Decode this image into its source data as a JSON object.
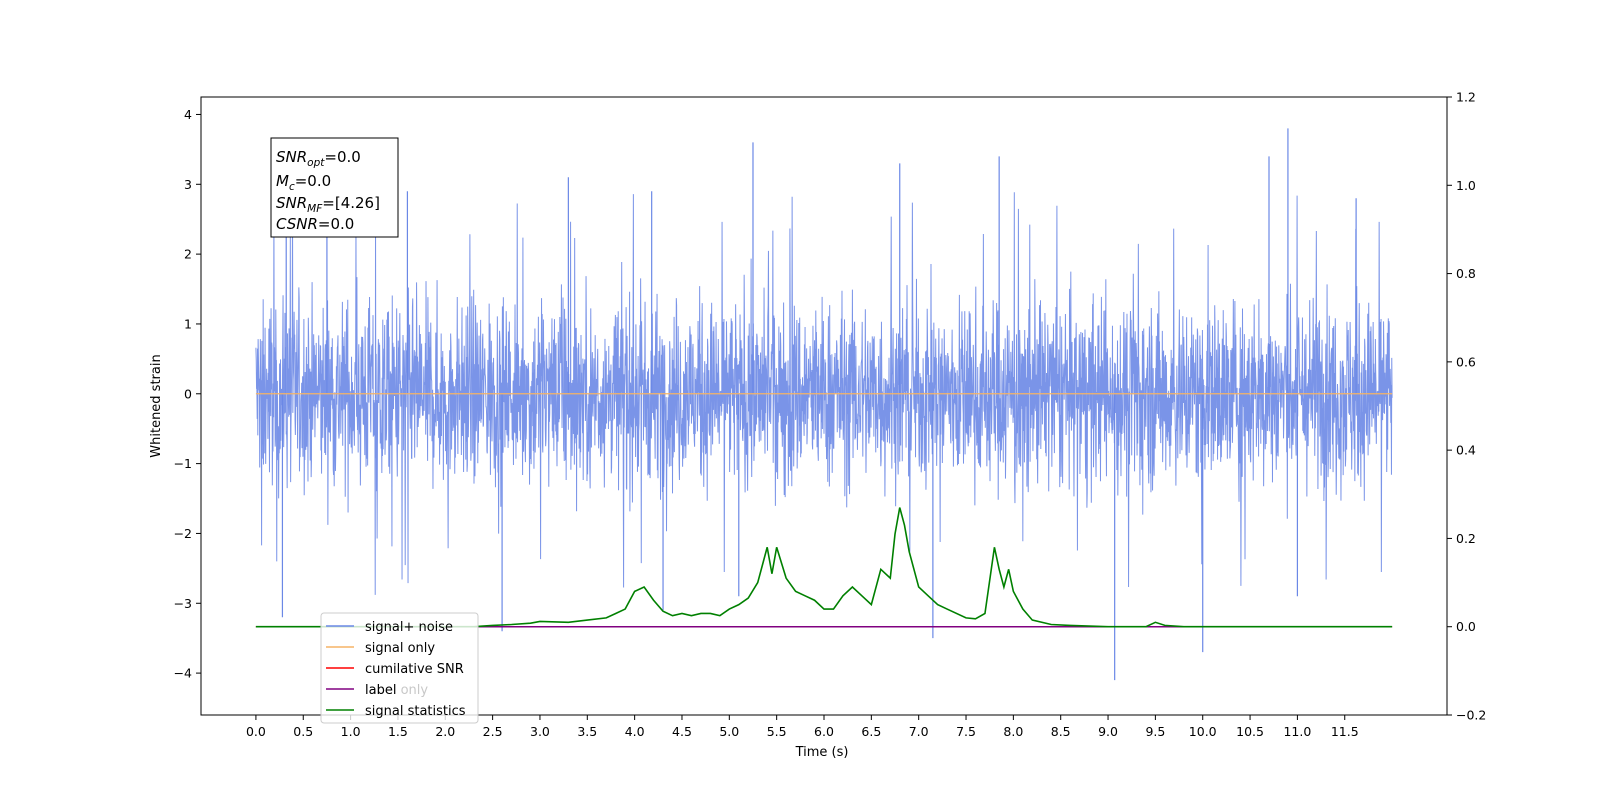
{
  "chart_data": {
    "type": "line",
    "xlabel": "Time (s)",
    "ylabel": "Whitened strain",
    "xlim": [
      -0.58,
      12.58
    ],
    "ylim": [
      -4.6,
      4.25
    ],
    "y2lim": [
      -0.2,
      1.2
    ],
    "x_ticks": [
      "0.0",
      "0.5",
      "1.0",
      "1.5",
      "2.0",
      "2.5",
      "3.0",
      "3.5",
      "4.0",
      "4.5",
      "5.0",
      "5.5",
      "6.0",
      "6.5",
      "7.0",
      "7.5",
      "8.0",
      "8.5",
      "9.0",
      "9.5",
      "10.0",
      "10.5",
      "11.0",
      "11.5"
    ],
    "y_ticks": [
      "-4",
      "-3",
      "-2",
      "-1",
      "0",
      "1",
      "2",
      "3",
      "4"
    ],
    "y2_ticks": [
      "-0.2",
      "0.0",
      "0.2",
      "0.4",
      "0.6",
      "0.8",
      "1.0",
      "1.2"
    ],
    "annotation": {
      "snr_opt_label": "SNR",
      "snr_opt_sub": "opt",
      "snr_opt_value": "=0.0",
      "mc_label": "M",
      "mc_sub": "c",
      "mc_value": "=0.0",
      "snr_mf_label": "SNR",
      "snr_mf_sub": "MF",
      "snr_mf_value": "=[4.26]",
      "csnr_label": "CSNR",
      "csnr_value": "=0.0"
    },
    "series": [
      {
        "name": "signal+ noise",
        "color": "#6b88e6",
        "x_range": [
          0.0,
          12.0
        ],
        "envelope_upper": 2.2,
        "envelope_lower": -2.0,
        "spikes_up": [
          [
            0.32,
            2.9
          ],
          [
            0.75,
            2.8
          ],
          [
            1.6,
            2.9
          ],
          [
            3.3,
            3.1
          ],
          [
            4.18,
            2.9
          ],
          [
            5.25,
            3.6
          ],
          [
            6.8,
            3.3
          ],
          [
            7.85,
            3.4
          ],
          [
            10.7,
            3.4
          ],
          [
            10.9,
            3.8
          ],
          [
            11.62,
            2.8
          ]
        ],
        "spikes_down": [
          [
            0.28,
            -3.2
          ],
          [
            2.6,
            -3.4
          ],
          [
            4.3,
            -3.1
          ],
          [
            5.1,
            -2.9
          ],
          [
            7.15,
            -3.5
          ],
          [
            9.07,
            -4.1
          ],
          [
            10.0,
            -3.7
          ],
          [
            11.0,
            -2.9
          ]
        ]
      },
      {
        "name": "signal only",
        "color": "#f5b366",
        "x": [
          0.0,
          12.0
        ],
        "y": [
          0.0,
          0.0
        ]
      },
      {
        "name": "cumilative SNR",
        "color": "#ff0000",
        "x": [
          0.0,
          12.0
        ],
        "y": [
          0.0,
          0.0
        ]
      },
      {
        "name": "label",
        "color": "#800080",
        "x": [
          0.0,
          12.0
        ],
        "y": [
          0.0,
          0.0
        ]
      },
      {
        "name": "label only",
        "color": "#bfbfbf"
      },
      {
        "name": "signal statistics",
        "color": "#008000",
        "axis": "right",
        "x": [
          0.0,
          2.3,
          2.5,
          2.7,
          2.9,
          3.0,
          3.3,
          3.5,
          3.7,
          3.8,
          3.9,
          4.0,
          4.1,
          4.2,
          4.3,
          4.4,
          4.5,
          4.6,
          4.7,
          4.8,
          4.9,
          5.0,
          5.1,
          5.2,
          5.3,
          5.4,
          5.45,
          5.5,
          5.6,
          5.7,
          5.8,
          5.9,
          6.0,
          6.1,
          6.2,
          6.3,
          6.4,
          6.5,
          6.6,
          6.7,
          6.75,
          6.8,
          6.85,
          6.9,
          7.0,
          7.1,
          7.2,
          7.3,
          7.5,
          7.6,
          7.7,
          7.8,
          7.85,
          7.9,
          7.95,
          8.0,
          8.1,
          8.2,
          8.4,
          8.6,
          9.0,
          9.4,
          9.5,
          9.6,
          9.8,
          12.0
        ],
        "y": [
          0.0,
          0.0,
          0.003,
          0.005,
          0.008,
          0.012,
          0.01,
          0.015,
          0.02,
          0.03,
          0.04,
          0.08,
          0.09,
          0.06,
          0.035,
          0.025,
          0.03,
          0.025,
          0.03,
          0.03,
          0.025,
          0.04,
          0.05,
          0.065,
          0.1,
          0.18,
          0.12,
          0.18,
          0.11,
          0.08,
          0.07,
          0.06,
          0.04,
          0.04,
          0.07,
          0.09,
          0.07,
          0.05,
          0.13,
          0.11,
          0.21,
          0.27,
          0.23,
          0.17,
          0.09,
          0.07,
          0.05,
          0.04,
          0.02,
          0.018,
          0.03,
          0.18,
          0.13,
          0.09,
          0.13,
          0.08,
          0.04,
          0.015,
          0.005,
          0.003,
          0.0,
          0.0,
          0.01,
          0.003,
          0.0,
          0.0
        ]
      }
    ]
  }
}
